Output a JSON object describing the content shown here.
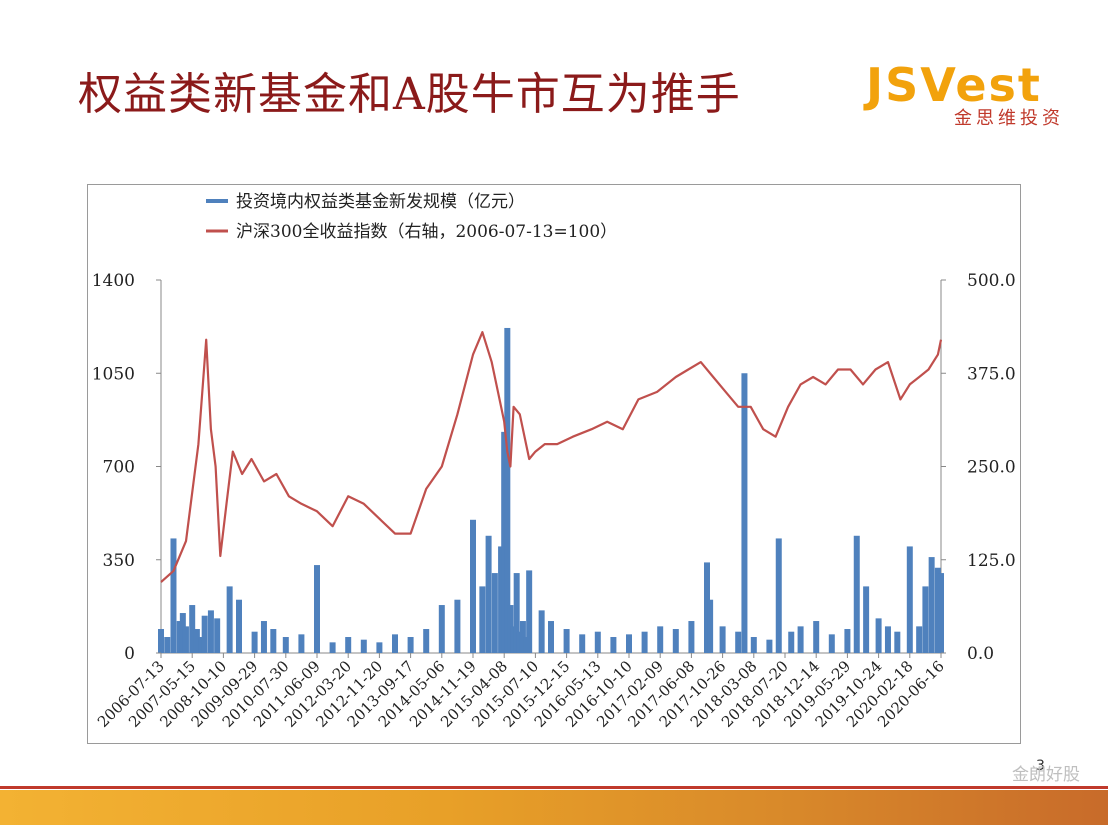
{
  "slide": {
    "title": "权益类新基金和A股牛市互为推手",
    "page_number": "3",
    "watermark": "金朗好股"
  },
  "logo": {
    "main": "JSVest",
    "sub": "金思维投资"
  },
  "colors": {
    "bar": "#4f81bd",
    "line": "#c0504d",
    "title": "#8b1a1a"
  },
  "chart_data": {
    "type": "bar+line",
    "legend_placement": "top-left",
    "grid": false,
    "x_tick_labels": [
      "2006-07-13",
      "2007-05-15",
      "2008-10-10",
      "2009-09-29",
      "2010-07-30",
      "2011-06-09",
      "2012-03-20",
      "2012-11-20",
      "2013-09-17",
      "2014-05-06",
      "2014-11-19",
      "2015-04-08",
      "2015-07-10",
      "2015-12-15",
      "2016-05-13",
      "2016-10-10",
      "2017-02-09",
      "2017-06-08",
      "2017-10-26",
      "2018-03-08",
      "2018-07-20",
      "2018-12-14",
      "2019-05-29",
      "2019-10-24",
      "2020-02-18",
      "2020-06-16"
    ],
    "y_left": {
      "ticks": [
        "0",
        "350",
        "700",
        "1050",
        "1400"
      ],
      "range": [
        0,
        1400
      ]
    },
    "y_right": {
      "ticks": [
        "0.0",
        "125.0",
        "250.0",
        "375.0",
        "500.0"
      ],
      "range": [
        0,
        500
      ]
    },
    "series": [
      {
        "name": "投资境内权益类基金新发规模（亿元）",
        "type": "bar",
        "axis": "left",
        "x": [
          0,
          0.2,
          0.4,
          0.6,
          0.7,
          0.8,
          1.0,
          1.15,
          1.3,
          1.4,
          1.6,
          1.8,
          2.2,
          2.5,
          3.0,
          3.3,
          3.6,
          4.0,
          4.5,
          5.0,
          5.5,
          6.0,
          6.5,
          7.0,
          7.5,
          8.0,
          8.5,
          9.0,
          9.5,
          10.0,
          10.3,
          10.5,
          10.7,
          10.9,
          11.0,
          11.1,
          11.2,
          11.3,
          11.4,
          11.5,
          11.6,
          11.7,
          11.8,
          12.2,
          12.5,
          13.0,
          13.5,
          14.0,
          14.5,
          15.0,
          15.5,
          16.0,
          16.5,
          17.0,
          17.5,
          17.6,
          18.0,
          18.5,
          18.7,
          19.0,
          19.5,
          19.8,
          20.2,
          20.5,
          21.0,
          21.5,
          22.0,
          22.3,
          22.6,
          23.0,
          23.3,
          23.6,
          24.0,
          24.3,
          24.5,
          24.7,
          24.9,
          25.0
        ],
        "values": [
          90,
          60,
          430,
          120,
          150,
          100,
          180,
          90,
          60,
          140,
          160,
          130,
          250,
          200,
          80,
          120,
          90,
          60,
          70,
          330,
          40,
          60,
          50,
          40,
          70,
          60,
          90,
          180,
          200,
          500,
          250,
          440,
          300,
          400,
          830,
          1220,
          180,
          100,
          300,
          80,
          120,
          60,
          310,
          160,
          120,
          90,
          70,
          80,
          60,
          70,
          80,
          100,
          90,
          120,
          340,
          200,
          100,
          80,
          1050,
          60,
          50,
          430,
          80,
          100,
          120,
          70,
          90,
          440,
          250,
          130,
          100,
          80,
          400,
          100,
          250,
          360,
          320,
          300
        ]
      },
      {
        "name": "沪深300全收益指数（右轴，2006-07-13=100）",
        "type": "line",
        "axis": "right",
        "x": [
          0,
          0.4,
          0.8,
          1.2,
          1.45,
          1.6,
          1.75,
          1.9,
          2.1,
          2.3,
          2.6,
          2.9,
          3.3,
          3.7,
          4.1,
          4.5,
          5.0,
          5.5,
          6.0,
          6.5,
          7.0,
          7.5,
          8.0,
          8.5,
          9.0,
          9.5,
          10.0,
          10.3,
          10.6,
          10.9,
          11.0,
          11.1,
          11.2,
          11.3,
          11.5,
          11.8,
          12.0,
          12.3,
          12.7,
          13.2,
          13.8,
          14.3,
          14.8,
          15.3,
          15.9,
          16.5,
          16.9,
          17.3,
          17.7,
          18.1,
          18.5,
          18.9,
          19.3,
          19.7,
          20.1,
          20.5,
          20.9,
          21.3,
          21.7,
          22.1,
          22.5,
          22.9,
          23.3,
          23.7,
          24.0,
          24.3,
          24.6,
          24.9,
          25.0
        ],
        "values": [
          95,
          110,
          150,
          280,
          420,
          300,
          250,
          130,
          200,
          270,
          240,
          260,
          230,
          240,
          210,
          200,
          190,
          170,
          210,
          200,
          180,
          160,
          160,
          220,
          250,
          320,
          400,
          430,
          390,
          330,
          310,
          270,
          250,
          330,
          320,
          260,
          270,
          280,
          280,
          290,
          300,
          310,
          300,
          340,
          350,
          370,
          380,
          390,
          370,
          350,
          330,
          330,
          300,
          290,
          330,
          360,
          370,
          360,
          380,
          380,
          360,
          380,
          390,
          340,
          360,
          370,
          380,
          400,
          420
        ]
      }
    ]
  }
}
